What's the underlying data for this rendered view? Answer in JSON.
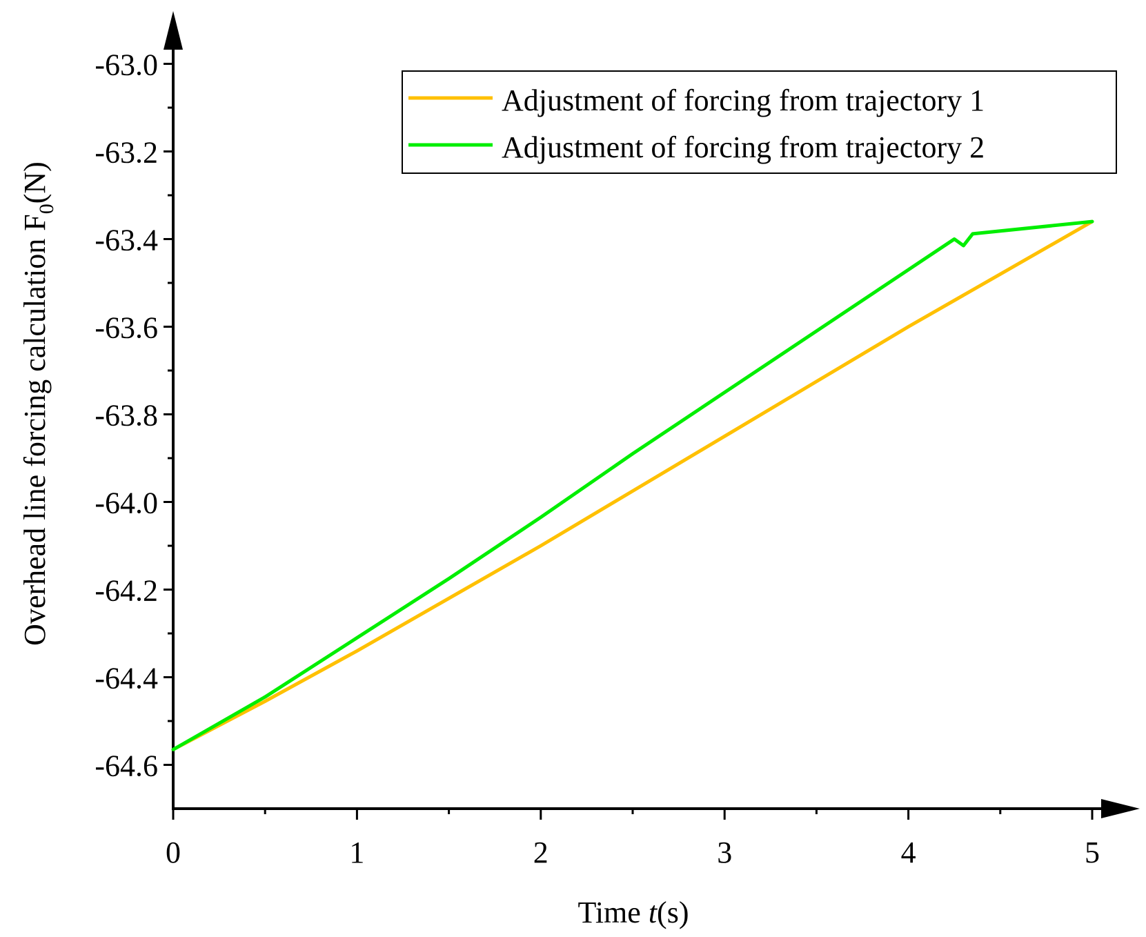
{
  "chart_data": {
    "type": "line",
    "title": "",
    "xlabel_parts": [
      "Time ",
      "t",
      "(s)"
    ],
    "ylabel_parts": [
      "Overhead line forcing calculation  F",
      "0",
      "(N)"
    ],
    "xlim": [
      0,
      5
    ],
    "ylim": [
      -64.7,
      -62.9
    ],
    "xticks": [
      0,
      1,
      2,
      3,
      4,
      5
    ],
    "xtick_labels": [
      "0",
      "1",
      "2",
      "3",
      "4",
      "5"
    ],
    "yticks": [
      -64.6,
      -64.4,
      -64.2,
      -64.0,
      -63.8,
      -63.6,
      -63.4,
      -63.2,
      -63.0
    ],
    "ytick_labels": [
      "-64.6",
      "-64.4",
      "-64.2",
      "-64.0",
      "-63.8",
      "-63.6",
      "-63.4",
      "-63.2",
      "-63.0"
    ],
    "grid": false,
    "legend_position": "top-right",
    "series": [
      {
        "name": "Adjustment of forcing from trajectory 1",
        "color": "#FFC000",
        "x": [
          0,
          0.5,
          1,
          1.5,
          2,
          2.5,
          3,
          3.5,
          4,
          4.5,
          5
        ],
        "y": [
          -64.565,
          -64.455,
          -64.34,
          -64.22,
          -64.1,
          -63.975,
          -63.85,
          -63.725,
          -63.6,
          -63.48,
          -63.36
        ]
      },
      {
        "name": "Adjustment of forcing from trajectory 2",
        "color": "#00EE00",
        "x": [
          0,
          0.5,
          1,
          1.5,
          2,
          2.5,
          3,
          3.5,
          4,
          4.25,
          4.3,
          4.35,
          5
        ],
        "y": [
          -64.565,
          -64.445,
          -64.31,
          -64.175,
          -64.035,
          -63.89,
          -63.75,
          -63.61,
          -63.47,
          -63.4,
          -63.415,
          -63.388,
          -63.36
        ]
      }
    ]
  }
}
